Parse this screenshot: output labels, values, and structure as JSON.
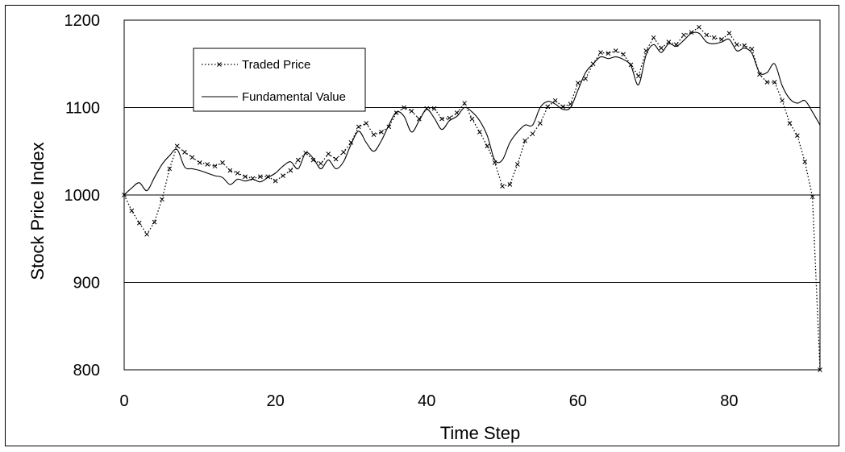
{
  "chart_data": {
    "type": "line",
    "xlabel": "Time Step",
    "ylabel": "Stock Price Index",
    "xlim": [
      0,
      92
    ],
    "ylim": [
      800,
      1200
    ],
    "xticks": [
      "0",
      "20",
      "40",
      "60",
      "80"
    ],
    "yticks": [
      "800",
      "900",
      "1000",
      "1100",
      "1200"
    ],
    "grid": "horizontal",
    "legend_position": "top-left",
    "series": [
      {
        "name": "Traded Price",
        "style": "dotted-x-markers",
        "x": [
          0,
          1,
          2,
          3,
          4,
          5,
          6,
          7,
          8,
          9,
          10,
          11,
          12,
          13,
          14,
          15,
          16,
          17,
          18,
          19,
          20,
          21,
          22,
          23,
          24,
          25,
          26,
          27,
          28,
          29,
          30,
          31,
          32,
          33,
          34,
          35,
          36,
          37,
          38,
          39,
          40,
          41,
          42,
          43,
          44,
          45,
          46,
          47,
          48,
          49,
          50,
          51,
          52,
          53,
          54,
          55,
          56,
          57,
          58,
          59,
          60,
          61,
          62,
          63,
          64,
          65,
          66,
          67,
          68,
          69,
          70,
          71,
          72,
          73,
          74,
          75,
          76,
          77,
          78,
          79,
          80,
          81,
          82,
          83,
          84,
          85,
          86,
          87,
          88,
          89,
          90,
          91,
          92
        ],
        "y": [
          1000,
          982,
          968,
          955,
          969,
          995,
          1030,
          1056,
          1049,
          1043,
          1037,
          1035,
          1033,
          1037,
          1028,
          1025,
          1021,
          1019,
          1021,
          1021,
          1016,
          1022,
          1028,
          1040,
          1048,
          1040,
          1036,
          1047,
          1041,
          1049,
          1060,
          1078,
          1082,
          1069,
          1072,
          1078,
          1094,
          1100,
          1096,
          1087,
          1099,
          1099,
          1087,
          1088,
          1094,
          1105,
          1087,
          1072,
          1056,
          1037,
          1010,
          1012,
          1035,
          1062,
          1070,
          1082,
          1101,
          1108,
          1101,
          1104,
          1128,
          1133,
          1150,
          1163,
          1162,
          1165,
          1161,
          1149,
          1136,
          1165,
          1180,
          1168,
          1175,
          1172,
          1183,
          1186,
          1192,
          1183,
          1180,
          1178,
          1185,
          1172,
          1171,
          1167,
          1138,
          1129,
          1129,
          1108,
          1082,
          1068,
          1038,
          998,
          800
        ]
      },
      {
        "name": "Fundamental Value",
        "style": "solid",
        "x": [
          0,
          1,
          2,
          3,
          4,
          5,
          6,
          7,
          8,
          9,
          10,
          11,
          12,
          13,
          14,
          15,
          16,
          17,
          18,
          19,
          20,
          21,
          22,
          23,
          24,
          25,
          26,
          27,
          28,
          29,
          30,
          31,
          32,
          33,
          34,
          35,
          36,
          37,
          38,
          39,
          40,
          41,
          42,
          43,
          44,
          45,
          46,
          47,
          48,
          49,
          50,
          51,
          52,
          53,
          54,
          55,
          56,
          57,
          58,
          59,
          60,
          61,
          62,
          63,
          64,
          65,
          66,
          67,
          68,
          69,
          70,
          71,
          72,
          73,
          74,
          75,
          76,
          77,
          78,
          79,
          80,
          81,
          82,
          83,
          84,
          85,
          86,
          87,
          88,
          89,
          90,
          91,
          92
        ],
        "y": [
          1000,
          1008,
          1014,
          1005,
          1020,
          1035,
          1045,
          1052,
          1032,
          1030,
          1028,
          1025,
          1022,
          1020,
          1012,
          1018,
          1016,
          1018,
          1015,
          1020,
          1025,
          1033,
          1038,
          1030,
          1048,
          1042,
          1030,
          1040,
          1030,
          1038,
          1058,
          1073,
          1060,
          1050,
          1062,
          1080,
          1095,
          1090,
          1072,
          1085,
          1098,
          1088,
          1075,
          1085,
          1090,
          1100,
          1095,
          1085,
          1068,
          1040,
          1040,
          1060,
          1072,
          1080,
          1080,
          1100,
          1107,
          1104,
          1098,
          1100,
          1120,
          1140,
          1150,
          1158,
          1156,
          1158,
          1155,
          1148,
          1126,
          1160,
          1172,
          1163,
          1173,
          1170,
          1177,
          1185,
          1185,
          1175,
          1173,
          1175,
          1178,
          1165,
          1168,
          1162,
          1140,
          1140,
          1150,
          1125,
          1110,
          1105,
          1108,
          1095,
          1080
        ]
      }
    ]
  }
}
